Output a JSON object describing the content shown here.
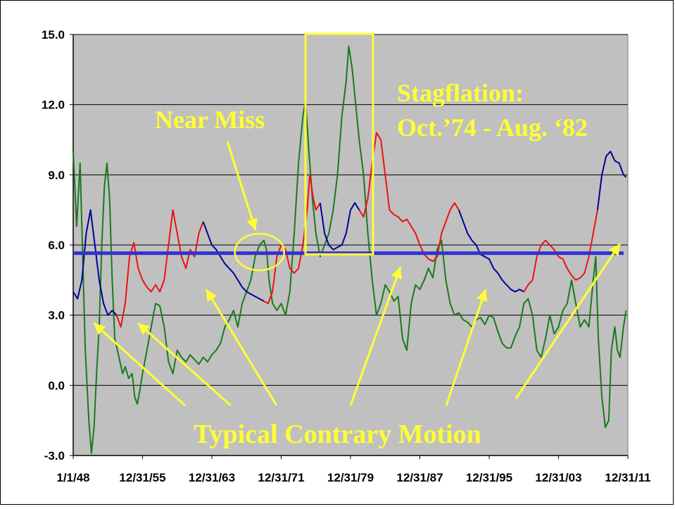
{
  "chart_data": {
    "type": "line",
    "title": "",
    "xlabel": "",
    "ylabel": "",
    "ylim": [
      -3.0,
      15.0
    ],
    "yticks": [
      "15.0",
      "12.0",
      "9.0",
      "6.0",
      "3.0",
      "0.0",
      "-3.0"
    ],
    "xticks": [
      "1/1/48",
      "12/31/55",
      "12/31/63",
      "12/31/71",
      "12/31/79",
      "12/31/87",
      "12/31/95",
      "12/31/03",
      "12/31/11"
    ],
    "xlim": [
      1948.0,
      2012.0
    ],
    "grid": "horizontal",
    "plot_background": "#c0c0c0",
    "mean_line": {
      "value": 5.65,
      "color": "#3333cc"
    },
    "series": [
      {
        "color": "#1a7a1a",
        "points": [
          [
            1948.0,
            10.0
          ],
          [
            1948.4,
            6.8
          ],
          [
            1948.8,
            9.5
          ],
          [
            1949.1,
            5.5
          ],
          [
            1949.4,
            1.5
          ],
          [
            1949.8,
            -1.5
          ],
          [
            1950.1,
            -2.9
          ],
          [
            1950.4,
            -1.8
          ],
          [
            1950.7,
            0.5
          ],
          [
            1951.0,
            2.5
          ],
          [
            1951.3,
            6.0
          ],
          [
            1951.6,
            8.5
          ],
          [
            1951.9,
            9.5
          ],
          [
            1952.2,
            8.0
          ],
          [
            1952.5,
            4.5
          ],
          [
            1952.8,
            2.0
          ],
          [
            1953.1,
            1.5
          ],
          [
            1953.4,
            1.0
          ],
          [
            1953.7,
            0.5
          ],
          [
            1954.0,
            0.8
          ],
          [
            1954.4,
            0.3
          ],
          [
            1954.8,
            0.5
          ],
          [
            1955.1,
            -0.5
          ],
          [
            1955.4,
            -0.8
          ],
          [
            1955.7,
            -0.2
          ],
          [
            1956.0,
            0.5
          ],
          [
            1956.5,
            1.5
          ],
          [
            1957.0,
            2.5
          ],
          [
            1957.5,
            3.5
          ],
          [
            1958.0,
            3.4
          ],
          [
            1958.5,
            2.5
          ],
          [
            1959.0,
            1.0
          ],
          [
            1959.5,
            0.5
          ],
          [
            1960.0,
            1.5
          ],
          [
            1960.5,
            1.2
          ],
          [
            1961.0,
            1.0
          ],
          [
            1961.5,
            1.3
          ],
          [
            1962.0,
            1.1
          ],
          [
            1962.5,
            0.9
          ],
          [
            1963.0,
            1.2
          ],
          [
            1963.5,
            1.0
          ],
          [
            1964.0,
            1.3
          ],
          [
            1964.5,
            1.5
          ],
          [
            1965.0,
            1.8
          ],
          [
            1965.5,
            2.5
          ],
          [
            1966.0,
            2.8
          ],
          [
            1966.5,
            3.2
          ],
          [
            1967.0,
            2.5
          ],
          [
            1967.5,
            3.5
          ],
          [
            1968.0,
            4.0
          ],
          [
            1968.5,
            4.5
          ],
          [
            1969.0,
            5.5
          ],
          [
            1969.5,
            6.0
          ],
          [
            1970.0,
            6.2
          ],
          [
            1970.3,
            5.8
          ],
          [
            1970.6,
            4.5
          ],
          [
            1971.0,
            3.5
          ],
          [
            1971.5,
            3.2
          ],
          [
            1972.0,
            3.5
          ],
          [
            1972.5,
            3.0
          ],
          [
            1973.0,
            4.0
          ],
          [
            1973.5,
            6.5
          ],
          [
            1974.0,
            9.5
          ],
          [
            1974.5,
            11.5
          ],
          [
            1974.8,
            12.2
          ],
          [
            1975.2,
            10.0
          ],
          [
            1975.6,
            8.0
          ],
          [
            1976.0,
            6.5
          ],
          [
            1976.5,
            5.5
          ],
          [
            1977.0,
            6.0
          ],
          [
            1977.5,
            6.5
          ],
          [
            1978.0,
            7.5
          ],
          [
            1978.5,
            9.0
          ],
          [
            1979.0,
            11.5
          ],
          [
            1979.5,
            13.0
          ],
          [
            1979.8,
            14.5
          ],
          [
            1980.2,
            13.5
          ],
          [
            1980.6,
            12.0
          ],
          [
            1981.0,
            10.5
          ],
          [
            1981.5,
            9.0
          ],
          [
            1982.0,
            6.5
          ],
          [
            1982.5,
            4.5
          ],
          [
            1983.0,
            3.0
          ],
          [
            1983.5,
            3.5
          ],
          [
            1984.0,
            4.3
          ],
          [
            1984.5,
            4.0
          ],
          [
            1985.0,
            3.6
          ],
          [
            1985.5,
            3.8
          ],
          [
            1986.0,
            2.0
          ],
          [
            1986.5,
            1.5
          ],
          [
            1987.0,
            3.5
          ],
          [
            1987.5,
            4.3
          ],
          [
            1988.0,
            4.1
          ],
          [
            1988.5,
            4.5
          ],
          [
            1989.0,
            5.0
          ],
          [
            1989.5,
            4.6
          ],
          [
            1990.0,
            5.8
          ],
          [
            1990.5,
            6.2
          ],
          [
            1991.0,
            4.5
          ],
          [
            1991.5,
            3.5
          ],
          [
            1992.0,
            3.0
          ],
          [
            1992.5,
            3.1
          ],
          [
            1993.0,
            2.8
          ],
          [
            1993.5,
            2.7
          ],
          [
            1994.0,
            2.5
          ],
          [
            1994.5,
            2.8
          ],
          [
            1995.0,
            2.9
          ],
          [
            1995.5,
            2.6
          ],
          [
            1996.0,
            3.0
          ],
          [
            1996.5,
            2.9
          ],
          [
            1997.0,
            2.3
          ],
          [
            1997.5,
            1.8
          ],
          [
            1998.0,
            1.6
          ],
          [
            1998.5,
            1.6
          ],
          [
            1999.0,
            2.1
          ],
          [
            1999.5,
            2.5
          ],
          [
            2000.0,
            3.5
          ],
          [
            2000.5,
            3.7
          ],
          [
            2001.0,
            3.0
          ],
          [
            2001.5,
            1.5
          ],
          [
            2002.0,
            1.2
          ],
          [
            2002.5,
            2.0
          ],
          [
            2003.0,
            3.0
          ],
          [
            2003.5,
            2.2
          ],
          [
            2004.0,
            2.5
          ],
          [
            2004.5,
            3.2
          ],
          [
            2005.0,
            3.5
          ],
          [
            2005.5,
            4.5
          ],
          [
            2006.0,
            3.5
          ],
          [
            2006.5,
            2.5
          ],
          [
            2007.0,
            2.8
          ],
          [
            2007.5,
            2.5
          ],
          [
            2008.0,
            4.5
          ],
          [
            2008.3,
            5.5
          ],
          [
            2008.6,
            2.0
          ],
          [
            2009.0,
            -0.5
          ],
          [
            2009.4,
            -1.8
          ],
          [
            2009.8,
            -1.5
          ],
          [
            2010.1,
            1.5
          ],
          [
            2010.5,
            2.5
          ],
          [
            2010.8,
            1.5
          ],
          [
            2011.1,
            1.2
          ],
          [
            2011.5,
            2.5
          ],
          [
            2011.8,
            3.2
          ]
        ]
      },
      {
        "color": "#000099",
        "points": [
          [
            1948.0,
            4.0
          ],
          [
            1948.5,
            3.7
          ],
          [
            1949.0,
            4.5
          ],
          [
            1949.5,
            6.5
          ],
          [
            1950.0,
            7.5
          ],
          [
            1950.5,
            6.0
          ],
          [
            1951.0,
            4.5
          ],
          [
            1951.5,
            3.5
          ],
          [
            1952.0,
            3.0
          ],
          [
            1952.5,
            3.2
          ],
          [
            1953.0,
            3.0
          ]
        ]
      },
      {
        "color": "#ee1111",
        "points": [
          [
            1953.0,
            3.0
          ],
          [
            1953.5,
            2.5
          ],
          [
            1954.0,
            3.5
          ],
          [
            1954.5,
            5.5
          ],
          [
            1955.0,
            6.1
          ],
          [
            1955.5,
            5.0
          ],
          [
            1956.0,
            4.5
          ],
          [
            1956.5,
            4.2
          ],
          [
            1957.0,
            4.0
          ],
          [
            1957.5,
            4.3
          ],
          [
            1958.0,
            4.0
          ],
          [
            1958.5,
            4.5
          ],
          [
            1959.0,
            6.0
          ],
          [
            1959.5,
            7.5
          ],
          [
            1960.0,
            6.5
          ],
          [
            1960.5,
            5.5
          ],
          [
            1961.0,
            5.0
          ],
          [
            1961.5,
            5.8
          ],
          [
            1962.0,
            5.5
          ],
          [
            1962.5,
            6.5
          ],
          [
            1963.0,
            7.0
          ]
        ]
      },
      {
        "color": "#000099",
        "points": [
          [
            1963.0,
            7.0
          ],
          [
            1963.5,
            6.5
          ],
          [
            1964.0,
            6.0
          ],
          [
            1964.5,
            5.8
          ],
          [
            1965.0,
            5.5
          ],
          [
            1965.5,
            5.2
          ],
          [
            1966.0,
            5.0
          ],
          [
            1966.5,
            4.8
          ],
          [
            1967.0,
            4.5
          ],
          [
            1967.5,
            4.2
          ],
          [
            1968.0,
            4.0
          ],
          [
            1968.5,
            3.9
          ],
          [
            1969.0,
            3.8
          ],
          [
            1969.5,
            3.7
          ],
          [
            1970.0,
            3.6
          ]
        ]
      },
      {
        "color": "#ee1111",
        "points": [
          [
            1970.0,
            3.6
          ],
          [
            1970.5,
            3.5
          ],
          [
            1971.0,
            4.0
          ],
          [
            1971.5,
            5.5
          ],
          [
            1972.0,
            6.0
          ],
          [
            1972.5,
            5.8
          ],
          [
            1973.0,
            5.0
          ],
          [
            1973.5,
            4.8
          ],
          [
            1974.0,
            5.0
          ],
          [
            1974.5,
            6.0
          ],
          [
            1975.0,
            7.5
          ],
          [
            1975.3,
            9.0
          ],
          [
            1975.7,
            8.0
          ],
          [
            1976.0,
            7.5
          ],
          [
            1976.5,
            7.8
          ]
        ]
      },
      {
        "color": "#000099",
        "points": [
          [
            1976.5,
            7.8
          ],
          [
            1977.0,
            6.5
          ],
          [
            1977.5,
            6.0
          ],
          [
            1978.0,
            5.8
          ],
          [
            1978.5,
            5.9
          ],
          [
            1979.0,
            6.0
          ],
          [
            1979.5,
            6.5
          ],
          [
            1980.0,
            7.5
          ],
          [
            1980.5,
            7.8
          ],
          [
            1981.0,
            7.5
          ]
        ]
      },
      {
        "color": "#ee1111",
        "points": [
          [
            1981.0,
            7.5
          ],
          [
            1981.5,
            7.2
          ],
          [
            1982.0,
            8.0
          ],
          [
            1982.5,
            9.5
          ],
          [
            1983.0,
            10.8
          ],
          [
            1983.5,
            10.5
          ],
          [
            1984.0,
            9.0
          ],
          [
            1984.5,
            7.5
          ],
          [
            1985.0,
            7.3
          ],
          [
            1985.5,
            7.2
          ],
          [
            1986.0,
            7.0
          ],
          [
            1986.5,
            7.1
          ],
          [
            1987.0,
            6.8
          ],
          [
            1987.5,
            6.5
          ],
          [
            1988.0,
            6.0
          ],
          [
            1988.5,
            5.6
          ],
          [
            1989.0,
            5.4
          ],
          [
            1989.5,
            5.3
          ],
          [
            1990.0,
            5.5
          ],
          [
            1990.5,
            6.5
          ],
          [
            1991.0,
            7.0
          ],
          [
            1991.5,
            7.5
          ],
          [
            1992.0,
            7.8
          ],
          [
            1992.5,
            7.5
          ]
        ]
      },
      {
        "color": "#000099",
        "points": [
          [
            1992.5,
            7.5
          ],
          [
            1993.0,
            7.0
          ],
          [
            1993.5,
            6.5
          ],
          [
            1994.0,
            6.2
          ],
          [
            1994.5,
            6.0
          ],
          [
            1995.0,
            5.6
          ],
          [
            1995.5,
            5.5
          ],
          [
            1996.0,
            5.4
          ],
          [
            1996.5,
            5.0
          ],
          [
            1997.0,
            4.8
          ],
          [
            1997.5,
            4.5
          ],
          [
            1998.0,
            4.3
          ],
          [
            1998.5,
            4.1
          ],
          [
            1999.0,
            4.0
          ],
          [
            1999.5,
            4.1
          ],
          [
            2000.0,
            4.0
          ]
        ]
      },
      {
        "color": "#ee1111",
        "points": [
          [
            2000.0,
            4.0
          ],
          [
            2000.5,
            4.3
          ],
          [
            2001.0,
            4.5
          ],
          [
            2001.5,
            5.5
          ],
          [
            2002.0,
            6.0
          ],
          [
            2002.5,
            6.2
          ],
          [
            2003.0,
            6.0
          ],
          [
            2003.5,
            5.8
          ],
          [
            2004.0,
            5.5
          ],
          [
            2004.5,
            5.4
          ],
          [
            2005.0,
            5.0
          ],
          [
            2005.5,
            4.7
          ],
          [
            2006.0,
            4.5
          ],
          [
            2006.5,
            4.6
          ],
          [
            2007.0,
            4.8
          ],
          [
            2007.5,
            5.5
          ],
          [
            2008.0,
            6.5
          ],
          [
            2008.5,
            7.5
          ]
        ]
      },
      {
        "color": "#000099",
        "points": [
          [
            2008.5,
            7.5
          ],
          [
            2009.0,
            9.0
          ],
          [
            2009.5,
            9.8
          ],
          [
            2010.0,
            10.0
          ],
          [
            2010.5,
            9.6
          ],
          [
            2011.0,
            9.5
          ],
          [
            2011.5,
            9.0
          ],
          [
            2011.8,
            8.9
          ]
        ]
      }
    ]
  },
  "annotations": {
    "near_miss": "Near Miss",
    "stagflation_line1": "Stagflation:",
    "stagflation_line2": "Oct.’74 - Aug. ‘82",
    "contrary": "Typical Contrary Motion"
  },
  "annotation_color": "#ffff33"
}
